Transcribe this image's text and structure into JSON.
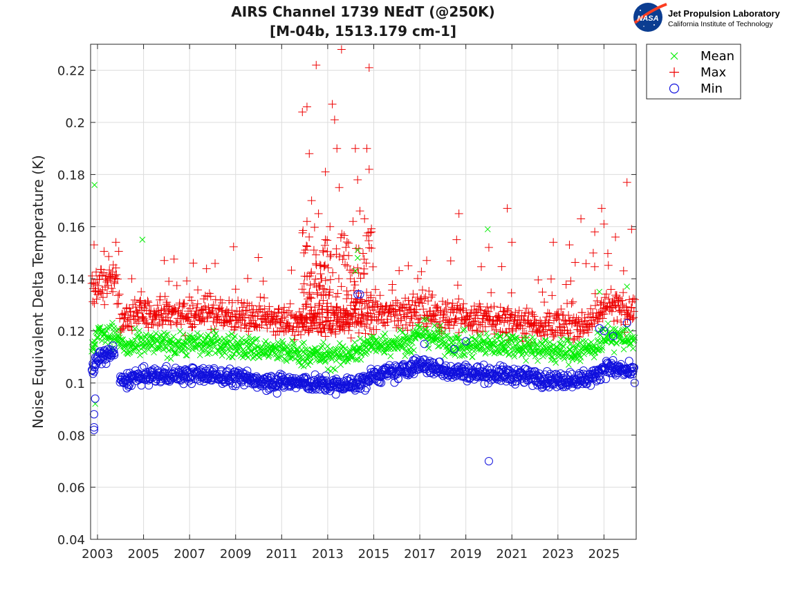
{
  "header": {
    "logo_org": "NASA",
    "logo_line1": "Jet Propulsion Laboratory",
    "logo_line2": "California Institute of Technology"
  },
  "chart_data": {
    "type": "scatter",
    "title": "AIRS Channel 1739 NEdT (@250K)",
    "subtitle": "[M-04b, 1513.179 cm-1]",
    "xlabel": "",
    "ylabel": "Noise Equivalent Delta Temperature (K)",
    "xlim": [
      2002.7,
      2026.4
    ],
    "ylim": [
      0.04,
      0.23
    ],
    "xticks": [
      2003,
      2005,
      2007,
      2009,
      2011,
      2013,
      2015,
      2017,
      2019,
      2021,
      2023,
      2025
    ],
    "xtick_labels": [
      "2003",
      "2005",
      "2007",
      "2009",
      "2011",
      "2013",
      "2015",
      "2017",
      "2019",
      "2021",
      "2023",
      "2025"
    ],
    "yticks": [
      0.04,
      0.06,
      0.08,
      0.1,
      0.12,
      0.14,
      0.16,
      0.18,
      0.2,
      0.22
    ],
    "ytick_labels": [
      "0.04",
      "0.06",
      "0.08",
      "0.1",
      "0.12",
      "0.14",
      "0.16",
      "0.18",
      "0.2",
      "0.22"
    ],
    "grid": true,
    "legend_position": "outside-top-right",
    "series": [
      {
        "name": "Mean",
        "marker": "x",
        "color": "#00ee00",
        "baseline": [
          [
            2002.75,
            0.113
          ],
          [
            2003.1,
            0.12
          ],
          [
            2003.8,
            0.118
          ],
          [
            2004.3,
            0.113
          ],
          [
            2005,
            0.115
          ],
          [
            2008,
            0.115
          ],
          [
            2010,
            0.113
          ],
          [
            2012,
            0.111
          ],
          [
            2013.5,
            0.11
          ],
          [
            2014.2,
            0.112
          ],
          [
            2015,
            0.115
          ],
          [
            2016.7,
            0.116
          ],
          [
            2017,
            0.12
          ],
          [
            2018,
            0.116
          ],
          [
            2019,
            0.114
          ],
          [
            2021,
            0.115
          ],
          [
            2023,
            0.112
          ],
          [
            2024.5,
            0.113
          ],
          [
            2025,
            0.118
          ],
          [
            2026.3,
            0.117
          ]
        ],
        "spread": 0.0045,
        "outliers": [
          [
            2002.87,
            0.176
          ],
          [
            2004.95,
            0.155
          ],
          [
            2014.3,
            0.151
          ],
          [
            2014.3,
            0.148
          ],
          [
            2019.95,
            0.159
          ],
          [
            2014.3,
            0.109
          ],
          [
            2002.9,
            0.092
          ],
          [
            2024.8,
            0.135
          ],
          [
            2026.0,
            0.137
          ],
          [
            2008.5,
            0.117
          ],
          [
            2014.2,
            0.143
          ]
        ]
      },
      {
        "name": "Max",
        "marker": "+",
        "color": "#ee0000",
        "baseline": [
          [
            2002.75,
            0.135
          ],
          [
            2003.3,
            0.138
          ],
          [
            2003.8,
            0.14
          ],
          [
            2004.0,
            0.124
          ],
          [
            2004.5,
            0.126
          ],
          [
            2006,
            0.127
          ],
          [
            2008,
            0.127
          ],
          [
            2010,
            0.125
          ],
          [
            2012,
            0.122
          ],
          [
            2014,
            0.124
          ],
          [
            2015,
            0.126
          ],
          [
            2016,
            0.127
          ],
          [
            2017,
            0.128
          ],
          [
            2018,
            0.126
          ],
          [
            2019,
            0.125
          ],
          [
            2021,
            0.124
          ],
          [
            2023,
            0.122
          ],
          [
            2024.5,
            0.124
          ],
          [
            2025,
            0.13
          ],
          [
            2026.3,
            0.128
          ]
        ],
        "spread": 0.006,
        "outliers": [
          [
            2002.85,
            0.153
          ],
          [
            2003.8,
            0.154
          ],
          [
            2004.9,
            0.135
          ],
          [
            2005.9,
            0.147
          ],
          [
            2006.1,
            0.139
          ],
          [
            2009.0,
            0.136
          ],
          [
            2011.9,
            0.204
          ],
          [
            2012.1,
            0.206
          ],
          [
            2012.2,
            0.188
          ],
          [
            2012.5,
            0.222
          ],
          [
            2012.9,
            0.181
          ],
          [
            2013.2,
            0.207
          ],
          [
            2013.3,
            0.201
          ],
          [
            2013.6,
            0.228
          ],
          [
            2013.4,
            0.19
          ],
          [
            2014.2,
            0.19
          ],
          [
            2014.8,
            0.221
          ],
          [
            2014.7,
            0.19
          ],
          [
            2014.8,
            0.182
          ],
          [
            2014.3,
            0.178
          ],
          [
            2013.5,
            0.175
          ],
          [
            2012.3,
            0.17
          ],
          [
            2012.6,
            0.165
          ],
          [
            2013.1,
            0.16
          ],
          [
            2012.9,
            0.155
          ],
          [
            2014.6,
            0.163
          ],
          [
            2014.9,
            0.158
          ],
          [
            2012.1,
            0.162
          ],
          [
            2012.4,
            0.151
          ],
          [
            2013.7,
            0.149
          ],
          [
            2012.7,
            0.145
          ],
          [
            2012.0,
            0.141
          ],
          [
            2014.1,
            0.162
          ],
          [
            2014.4,
            0.166
          ],
          [
            2018.7,
            0.165
          ],
          [
            2020.8,
            0.167
          ],
          [
            2020.0,
            0.152
          ],
          [
            2021.0,
            0.154
          ],
          [
            2024.0,
            0.163
          ],
          [
            2024.9,
            0.167
          ],
          [
            2025.0,
            0.161
          ],
          [
            2026.0,
            0.177
          ],
          [
            2026.2,
            0.159
          ],
          [
            2022.8,
            0.154
          ],
          [
            2023.5,
            0.153
          ],
          [
            2018.6,
            0.155
          ],
          [
            2017.3,
            0.147
          ],
          [
            2016.5,
            0.145
          ],
          [
            2024.6,
            0.158
          ],
          [
            2025.5,
            0.156
          ]
        ],
        "cluster": [
          2011.8,
          2015.0,
          0.125,
          0.16,
          160
        ]
      },
      {
        "name": "Min",
        "marker": "o",
        "color": "#1010dd",
        "baseline": [
          [
            2002.75,
            0.104
          ],
          [
            2003.1,
            0.11
          ],
          [
            2003.8,
            0.112
          ],
          [
            2004.0,
            0.1
          ],
          [
            2004.5,
            0.102
          ],
          [
            2006,
            0.103
          ],
          [
            2008,
            0.103
          ],
          [
            2010,
            0.101
          ],
          [
            2012,
            0.1
          ],
          [
            2013.5,
            0.099
          ],
          [
            2014.5,
            0.1
          ],
          [
            2015,
            0.103
          ],
          [
            2016,
            0.104
          ],
          [
            2017,
            0.107
          ],
          [
            2018,
            0.105
          ],
          [
            2019,
            0.104
          ],
          [
            2021,
            0.103
          ],
          [
            2023,
            0.101
          ],
          [
            2024.5,
            0.102
          ],
          [
            2025,
            0.106
          ],
          [
            2026.3,
            0.104
          ]
        ],
        "spread": 0.003,
        "outliers": [
          [
            2002.85,
            0.083
          ],
          [
            2002.85,
            0.082
          ],
          [
            2002.85,
            0.088
          ],
          [
            2002.9,
            0.094
          ],
          [
            2020.0,
            0.07
          ],
          [
            2014.3,
            0.134
          ],
          [
            2014.4,
            0.134
          ],
          [
            2010.8,
            0.096
          ],
          [
            2024.8,
            0.121
          ],
          [
            2025.0,
            0.12
          ],
          [
            2026.0,
            0.123
          ],
          [
            2025.4,
            0.118
          ],
          [
            2017.2,
            0.115
          ],
          [
            2018.5,
            0.113
          ],
          [
            2019.0,
            0.116
          ]
        ]
      }
    ]
  }
}
